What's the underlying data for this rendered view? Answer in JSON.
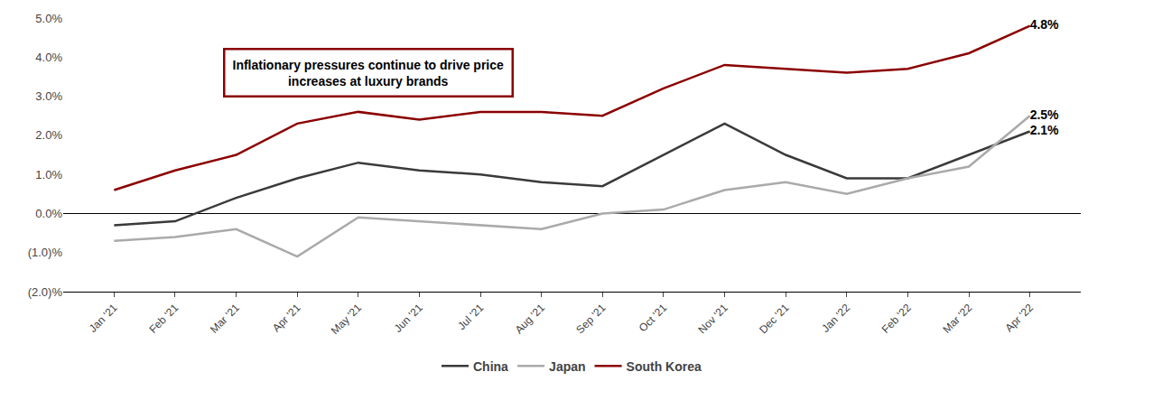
{
  "chart_data": {
    "type": "line",
    "categories": [
      "Jan '21",
      "Feb '21",
      "Mar '21",
      "Apr '21",
      "May '21",
      "Jun '21",
      "Jul '21",
      "Aug '21",
      "Sep '21",
      "Oct '21",
      "Nov '21",
      "Dec '21",
      "Jan '22",
      "Feb '22",
      "Mar '22",
      "Apr '22"
    ],
    "series": [
      {
        "name": "China",
        "color": "#3a3a3a",
        "values": [
          -0.3,
          -0.2,
          0.4,
          0.9,
          1.3,
          1.1,
          1.0,
          0.8,
          0.7,
          1.5,
          2.3,
          1.5,
          0.9,
          0.9,
          1.5,
          2.1
        ],
        "value_labels": [
          null,
          null,
          null,
          null,
          null,
          null,
          null,
          null,
          null,
          null,
          null,
          null,
          null,
          null,
          null,
          "2.1%"
        ]
      },
      {
        "name": "Japan",
        "color": "#aaaaaa",
        "values": [
          -0.7,
          -0.6,
          -0.4,
          -1.1,
          -0.1,
          -0.2,
          -0.3,
          -0.4,
          0.0,
          0.1,
          0.6,
          0.8,
          0.5,
          0.9,
          1.2,
          2.5
        ],
        "value_labels": [
          null,
          null,
          null,
          null,
          null,
          null,
          null,
          null,
          null,
          null,
          null,
          null,
          null,
          null,
          null,
          "2.5%"
        ]
      },
      {
        "name": "South Korea",
        "color": "#8b0000",
        "values": [
          0.6,
          1.1,
          1.5,
          2.3,
          2.6,
          2.4,
          2.6,
          2.6,
          2.5,
          3.2,
          3.8,
          3.7,
          3.6,
          3.7,
          4.1,
          4.8
        ],
        "value_labels": [
          null,
          null,
          null,
          null,
          null,
          null,
          null,
          null,
          null,
          null,
          null,
          null,
          null,
          null,
          null,
          "4.8%"
        ]
      }
    ],
    "annotations": [
      {
        "text": "Inflationary pressures continue to drive price\nincreases at luxury brands",
        "color": "#8b0000"
      }
    ],
    "ylim": [
      -2.0,
      5.0
    ],
    "yticks": [
      {
        "value": -2.0,
        "label": "(2.0)%"
      },
      {
        "value": -1.0,
        "label": "(1.0)%"
      },
      {
        "value": 0.0,
        "label": "0.0%"
      },
      {
        "value": 1.0,
        "label": "1.0%"
      },
      {
        "value": 2.0,
        "label": "2.0%"
      },
      {
        "value": 3.0,
        "label": "3.0%"
      },
      {
        "value": 4.0,
        "label": "4.0%"
      },
      {
        "value": 5.0,
        "label": "5.0%"
      }
    ],
    "grid": false,
    "legend": "bottom"
  }
}
